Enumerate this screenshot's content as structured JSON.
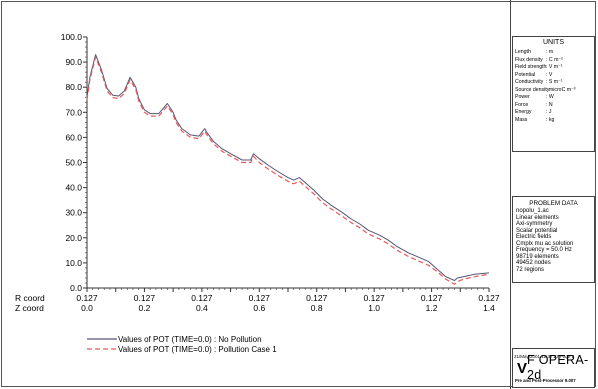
{
  "units_panel": {
    "title": "UNITS",
    "rows": [
      {
        "name": "Length",
        "value": ": m"
      },
      {
        "name": "Flux density",
        "value": ": C m⁻²"
      },
      {
        "name": "Field strength",
        "value": ": V m⁻¹"
      },
      {
        "name": "Potential",
        "value": ": V"
      },
      {
        "name": "Conductivity",
        "value": ": S m⁻¹"
      },
      {
        "name": "Source density",
        "value": ": microC m⁻³"
      },
      {
        "name": "Power",
        "value": ": W"
      },
      {
        "name": "Force",
        "value": ": N"
      },
      {
        "name": "Energy",
        "value": ": J"
      },
      {
        "name": "Mass",
        "value": ": kg"
      }
    ]
  },
  "problem_panel": {
    "title": "PROBLEM DATA",
    "lines": [
      "nopolu_1.ac",
      "Linear elements",
      "Axi-symmetry",
      "Scalar potential",
      "Electric fields",
      "Cmplx mu ac solution",
      "Frequency = 50.0 Hz",
      "98719  elements",
      "49452  nodes",
      "72  regions"
    ]
  },
  "stamp": {
    "date": "21/May/2001 12:37:27 Page 3",
    "logo_mark": "V",
    "logo_text": "F OPERA-2d",
    "sub": "Pre and Post-Processor 9.007"
  },
  "chart_data": {
    "type": "line",
    "ylim": [
      0,
      100
    ],
    "xlim": [
      0,
      1.4
    ],
    "y_ticks": [
      "0.0",
      "10.0",
      "20.0",
      "30.0",
      "40.0",
      "50.0",
      "60.0",
      "70.0",
      "80.0",
      "90.0",
      "100.0"
    ],
    "r_coord_label": "R coord",
    "z_coord_label": "Z coord",
    "r_ticks": [
      "0.127",
      "0.127",
      "0.127",
      "0.127",
      "0.127",
      "0.127",
      "0.127",
      "0.127",
      "0.127",
      "0.127",
      "0.127",
      "0.127",
      "0.127",
      "0.127",
      "0.127"
    ],
    "z_ticks": [
      "0.0",
      "0.2",
      "0.4",
      "0.6",
      "0.8",
      "1.0",
      "1.2",
      "1.4"
    ],
    "series": [
      {
        "name": "Values of POT (TIME=0.0) : No Pollution",
        "color": "#555577",
        "dash": "solid",
        "x": [
          0.0,
          0.01,
          0.03,
          0.05,
          0.07,
          0.09,
          0.11,
          0.13,
          0.15,
          0.17,
          0.18,
          0.2,
          0.22,
          0.25,
          0.28,
          0.3,
          0.31,
          0.33,
          0.36,
          0.39,
          0.41,
          0.42,
          0.44,
          0.47,
          0.5,
          0.54,
          0.57,
          0.58,
          0.6,
          0.63,
          0.67,
          0.7,
          0.72,
          0.74,
          0.76,
          0.79,
          0.82,
          0.85,
          0.89,
          0.92,
          0.95,
          0.98,
          1.02,
          1.05,
          1.08,
          1.12,
          1.15,
          1.19,
          1.22,
          1.25,
          1.28,
          1.29,
          1.31,
          1.35,
          1.4
        ],
        "values": [
          76.0,
          84.0,
          93.0,
          87.0,
          79.5,
          76.8,
          76.5,
          78.5,
          84.0,
          80.0,
          75.5,
          71.0,
          69.5,
          69.5,
          73.5,
          70.0,
          67.0,
          63.5,
          61.0,
          60.5,
          63.5,
          61.5,
          58.5,
          55.5,
          53.5,
          51.0,
          51.0,
          53.5,
          51.5,
          49.0,
          46.0,
          44.0,
          43.0,
          44.0,
          42.0,
          39.0,
          35.5,
          33.0,
          30.0,
          27.5,
          25.5,
          23.0,
          21.0,
          19.0,
          16.5,
          14.0,
          12.5,
          10.5,
          7.5,
          4.5,
          3.0,
          4.0,
          4.5,
          5.5,
          6.0
        ]
      },
      {
        "name": "Values of POT (TIME=0.0) : Pollution Case 1",
        "color": "#e85a5a",
        "dash": "dashed",
        "x": [
          0.0,
          0.01,
          0.03,
          0.05,
          0.07,
          0.09,
          0.11,
          0.13,
          0.15,
          0.17,
          0.18,
          0.2,
          0.22,
          0.25,
          0.28,
          0.3,
          0.31,
          0.33,
          0.36,
          0.39,
          0.41,
          0.42,
          0.44,
          0.47,
          0.5,
          0.54,
          0.57,
          0.58,
          0.6,
          0.63,
          0.67,
          0.7,
          0.72,
          0.74,
          0.76,
          0.79,
          0.82,
          0.85,
          0.89,
          0.92,
          0.95,
          0.98,
          1.02,
          1.05,
          1.08,
          1.12,
          1.15,
          1.19,
          1.22,
          1.25,
          1.28,
          1.29,
          1.31,
          1.35,
          1.4
        ],
        "values": [
          75.0,
          83.0,
          92.0,
          86.0,
          78.5,
          75.8,
          75.5,
          77.5,
          83.0,
          79.0,
          74.5,
          70.0,
          68.5,
          68.5,
          72.5,
          69.0,
          66.0,
          62.5,
          60.0,
          59.5,
          62.5,
          60.5,
          57.5,
          54.5,
          52.5,
          50.0,
          50.0,
          52.5,
          50.0,
          47.5,
          44.5,
          42.5,
          41.5,
          42.5,
          40.5,
          37.5,
          34.0,
          31.5,
          28.5,
          26.0,
          24.0,
          21.5,
          19.5,
          17.5,
          15.0,
          12.5,
          11.0,
          9.0,
          6.5,
          3.5,
          1.5,
          2.5,
          3.5,
          4.5,
          5.5
        ]
      }
    ]
  }
}
